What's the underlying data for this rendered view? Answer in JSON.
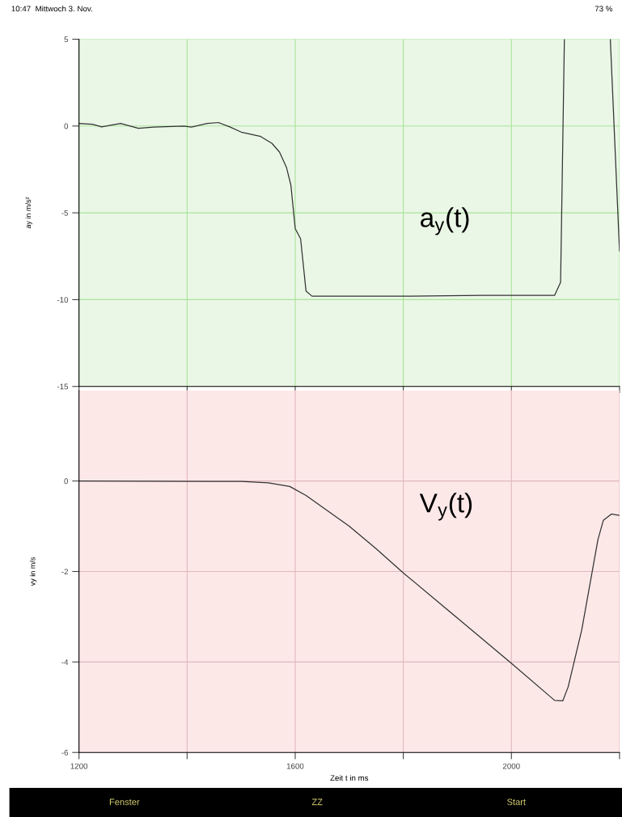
{
  "chart_data": [
    {
      "type": "line",
      "ylabel": "ay in m/s²",
      "xlim": [
        1200,
        2200
      ],
      "ylim": [
        -15,
        5
      ],
      "xticks": [
        {
          "value": 1200,
          "label": null
        },
        {
          "value": 1400,
          "label": null
        },
        {
          "value": 1600,
          "label": null
        },
        {
          "value": 1800,
          "label": null
        },
        {
          "value": 2000,
          "label": null
        },
        {
          "value": 2200,
          "label": null
        }
      ],
      "yticks": [
        -15,
        -10,
        -5,
        0,
        5
      ],
      "tick_labels": "y",
      "grid": true,
      "x": [
        1200,
        1225,
        1242,
        1260,
        1277,
        1310,
        1338,
        1394,
        1408,
        1437,
        1458,
        1479,
        1500,
        1536,
        1557,
        1571,
        1584,
        1592,
        1600,
        1610,
        1620,
        1631,
        1663,
        1720,
        1805,
        1946,
        2080,
        2091,
        2098,
        2140,
        2183,
        2200
      ],
      "series": [
        {
          "color": "#333333",
          "values": [
            0.15,
            0.1,
            -0.05,
            0.05,
            0.15,
            -0.13,
            -0.06,
            0,
            -0.06,
            0.15,
            0.2,
            -0.05,
            -0.35,
            -0.6,
            -1.0,
            -1.5,
            -2.4,
            -3.4,
            -5.9,
            -6.5,
            -9.5,
            -9.8,
            -9.8,
            -9.8,
            -9.8,
            -9.75,
            -9.75,
            -9.0,
            5,
            null,
            5,
            -7.2
          ]
        }
      ],
      "annotations": [
        "a$_{y}$(t)",
        "10:47  Mittwoch 3. Nov.",
        "73 %"
      ]
    },
    {
      "type": "line",
      "xlabel": "Zeit t in ms",
      "ylabel": "vy in m/s",
      "xlim": [
        1200,
        2200
      ],
      "ylim": [
        -6,
        2
      ],
      "xticks": [
        1200,
        {
          "value": 1400,
          "label": null
        },
        1600,
        {
          "value": 1800,
          "label": null
        },
        2000,
        {
          "value": 2200,
          "label": null
        }
      ],
      "yticks": [
        -6,
        -4,
        -2,
        0
      ],
      "grid": true,
      "x": [
        1200,
        1500,
        1550,
        1590,
        1620,
        1700,
        1750,
        1800,
        1900,
        2000,
        2080,
        2095,
        2105,
        2130,
        2160,
        2170,
        2185,
        2200
      ],
      "series": [
        {
          "color": "#333333",
          "values": [
            0,
            -0.01,
            -0.04,
            -0.12,
            -0.32,
            -1.0,
            -1.5,
            -2.03,
            -3.03,
            -4.03,
            -4.85,
            -4.86,
            -4.55,
            -3.3,
            -1.3,
            -0.87,
            -0.73,
            -0.76
          ]
        }
      ],
      "annotations": [
        "V$_{y}$(t)",
        "Fenster",
        "ZZ",
        "Start"
      ]
    }
  ]
}
